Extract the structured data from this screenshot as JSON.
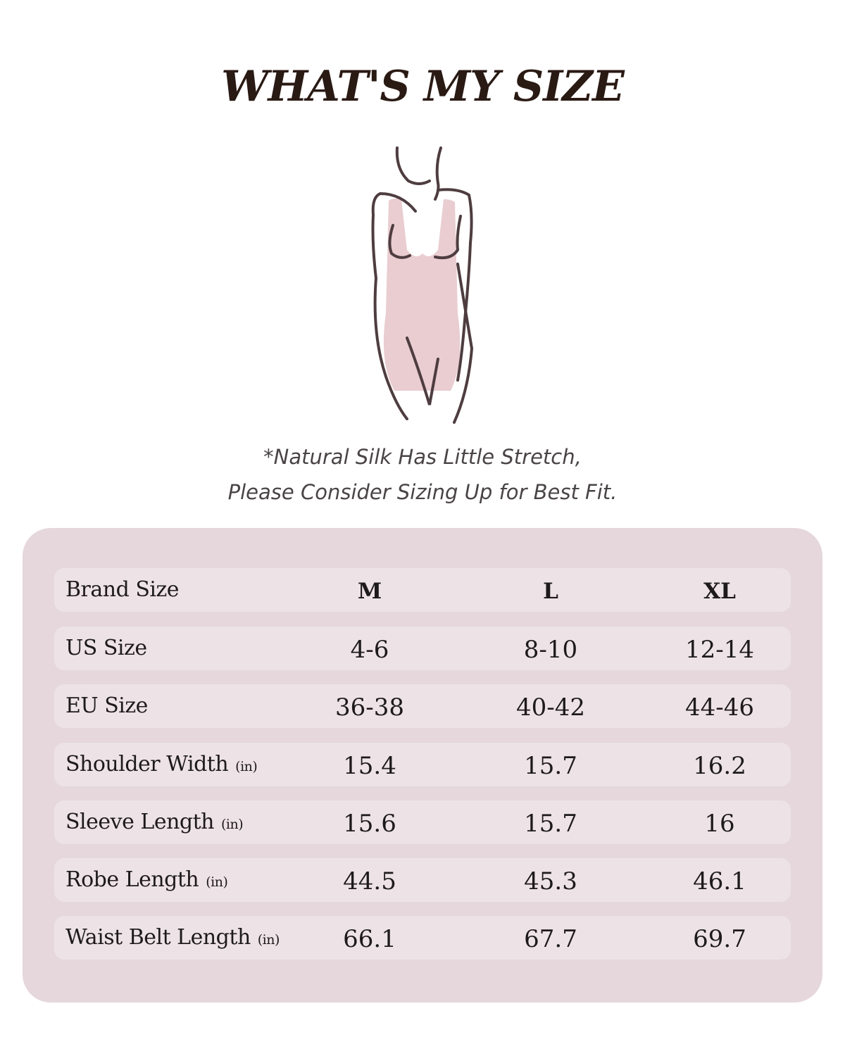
{
  "title": "WHAT'S MY SIZE",
  "note": {
    "line1": "*Natural Silk Has Little Stretch,",
    "line2": "Please Consider Sizing Up for Best Fit."
  },
  "colors": {
    "card": "#e5d7dc",
    "row": "#ede3e6",
    "figure_fill": "#e9cdd1",
    "figure_line": "#4e3d40"
  },
  "table": {
    "header": {
      "label": "Brand Size",
      "values": [
        "M",
        "L",
        "XL"
      ]
    },
    "rows": [
      {
        "label": "US Size",
        "unit": "",
        "values": [
          "4-6",
          "8-10",
          "12-14"
        ]
      },
      {
        "label": "EU Size",
        "unit": "",
        "values": [
          "36-38",
          "40-42",
          "44-46"
        ]
      },
      {
        "label": "Shoulder Width",
        "unit": "(in)",
        "values": [
          "15.4",
          "15.7",
          "16.2"
        ]
      },
      {
        "label": "Sleeve Length",
        "unit": "(in)",
        "values": [
          "15.6",
          "15.7",
          "16"
        ]
      },
      {
        "label": "Robe Length",
        "unit": "(in)",
        "values": [
          "44.5",
          "45.3",
          "46.1"
        ]
      },
      {
        "label": "Waist Belt Length",
        "unit": "(in)",
        "values": [
          "66.1",
          "67.7",
          "69.7"
        ]
      }
    ]
  }
}
